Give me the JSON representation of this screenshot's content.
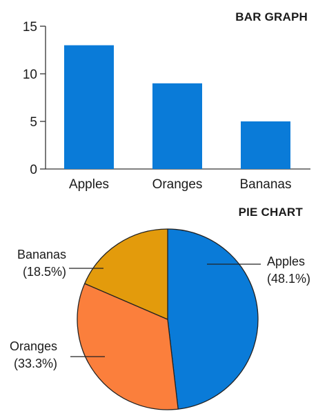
{
  "chart_data": [
    {
      "type": "bar",
      "title": "BAR GRAPH",
      "categories": [
        "Apples",
        "Oranges",
        "Bananas"
      ],
      "values": [
        13,
        9,
        5
      ],
      "ylim": [
        0,
        15
      ],
      "yticks": [
        0,
        5,
        10,
        15
      ],
      "grid": false,
      "color": "#0a7bd8"
    },
    {
      "type": "pie",
      "title": "PIE CHART",
      "labels": [
        "Apples",
        "Oranges",
        "Bananas"
      ],
      "values": [
        48.1,
        33.3,
        18.5
      ],
      "value_labels": [
        "(48.1%)",
        "(33.3%)",
        "(18.5%)"
      ],
      "colors": [
        "#0a7bd8",
        "#fb7f3c",
        "#e39b0c"
      ]
    }
  ]
}
